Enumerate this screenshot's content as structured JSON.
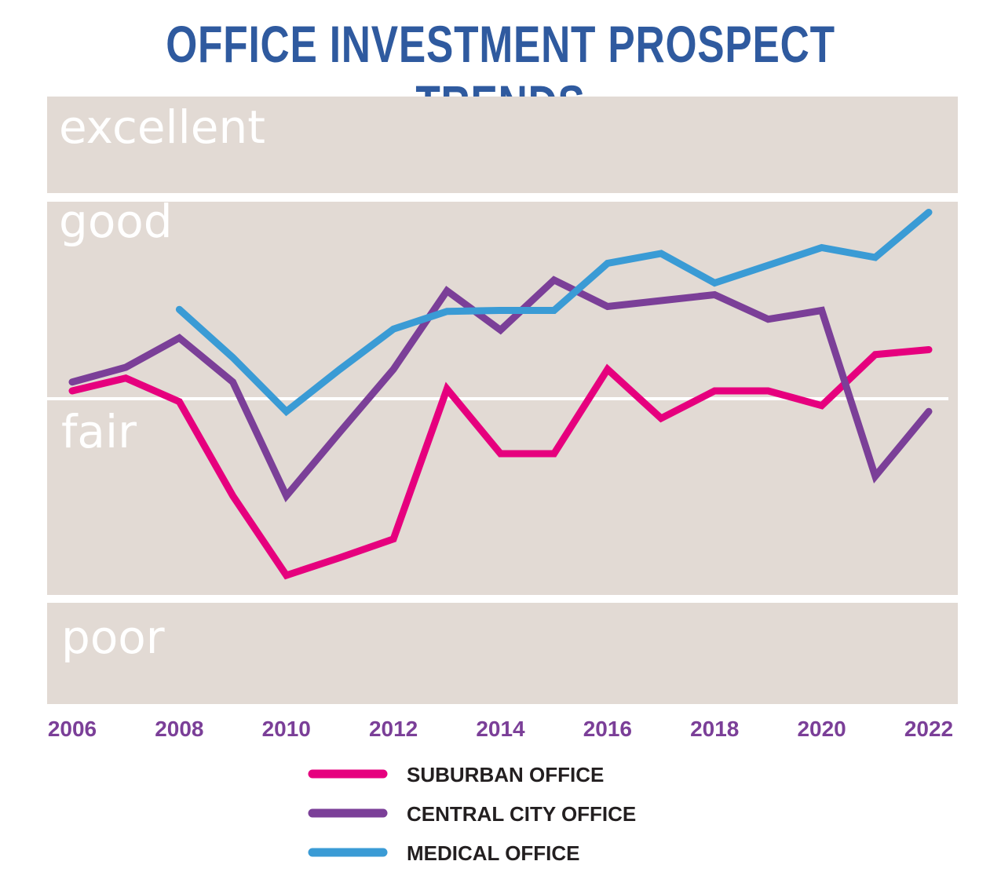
{
  "title": "OFFICE INVESTMENT PROSPECT TRENDS",
  "chart_data": {
    "type": "line",
    "title": "OFFICE INVESTMENT PROSPECT TRENDS",
    "x": [
      2006,
      2007,
      2008,
      2009,
      2010,
      2011,
      2012,
      2013,
      2014,
      2015,
      2016,
      2017,
      2018,
      2019,
      2020,
      2021,
      2022
    ],
    "x_tick_labels": [
      "2006",
      "2008",
      "2010",
      "2012",
      "2014",
      "2016",
      "2018",
      "2020",
      "2022"
    ],
    "y_bands": [
      "excellent",
      "good",
      "fair",
      "poor"
    ],
    "ylim": [
      1.9,
      8.1
    ],
    "grid": false,
    "legend_placement": "bottom",
    "series": [
      {
        "name": "SUBURBAN OFFICE",
        "color": "#e6007e",
        "values": [
          5.08,
          5.21,
          4.97,
          4.01,
          3.2,
          3.38,
          3.57,
          5.1,
          4.44,
          4.44,
          5.3,
          4.8,
          5.08,
          5.08,
          4.93,
          5.45,
          5.5
        ]
      },
      {
        "name": "CENTRAL CITY OFFICE",
        "color": "#7b3f98",
        "values": [
          5.17,
          5.32,
          5.62,
          5.17,
          4.01,
          4.66,
          5.3,
          6.1,
          5.7,
          6.21,
          5.94,
          6.0,
          6.06,
          5.81,
          5.9,
          4.21,
          4.87
        ]
      },
      {
        "name": "MEDICAL OFFICE",
        "color": "#3a9bd5",
        "values": [
          null,
          null,
          5.91,
          5.42,
          4.87,
          5.3,
          5.71,
          5.89,
          5.9,
          5.9,
          6.38,
          6.48,
          6.18,
          6.36,
          6.54,
          6.44,
          6.9
        ]
      }
    ],
    "colors": {
      "background": "#e2dad4",
      "title": "#2f5a9f",
      "ticks": "#7b3f98"
    }
  }
}
